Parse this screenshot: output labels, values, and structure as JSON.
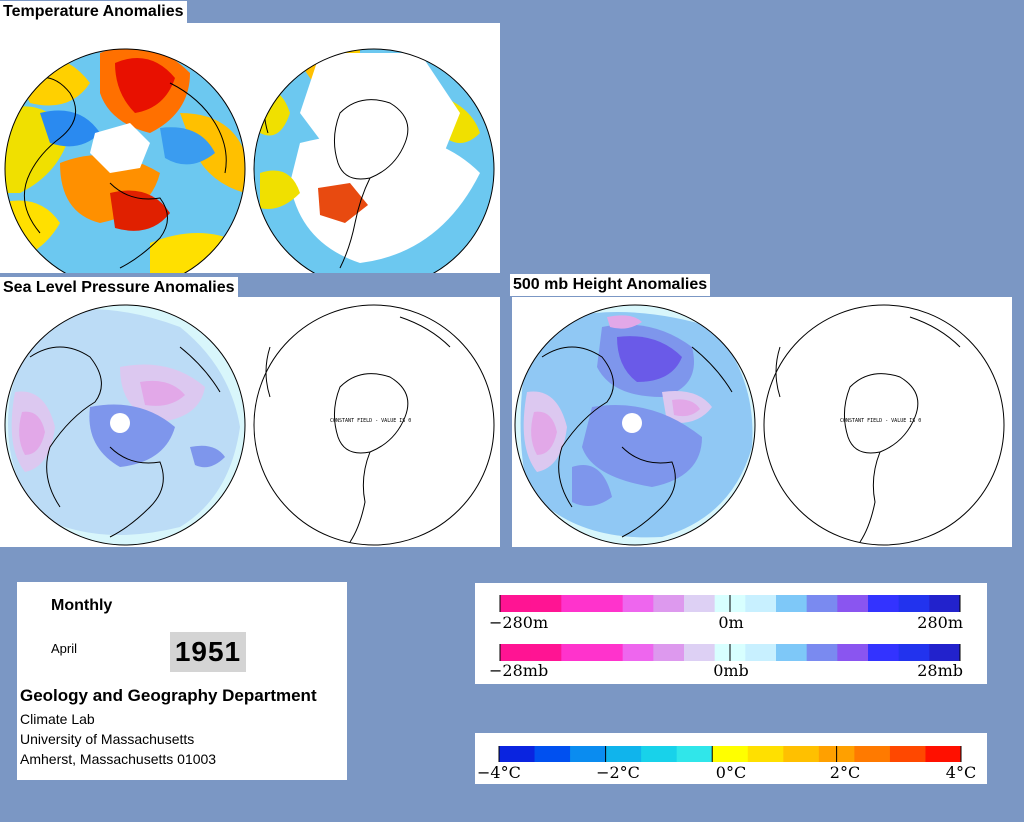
{
  "titles": {
    "temperature": "Temperature Anomalies",
    "slp": "Sea Level Pressure Anomalies",
    "height": "500 mb Height Anomalies"
  },
  "map_labels": {
    "slp_south": "CONSTANT FIELD - VALUE IS 0",
    "height_south": "CONSTANT FIELD - VALUE IS 0"
  },
  "info": {
    "period": "Monthly",
    "month": "April",
    "year": "1951",
    "department": "Geology and Geography Department",
    "lines": [
      "Climate Lab",
      "University of Massachusetts",
      "Amherst, Massachusetts 01003"
    ]
  },
  "legends": {
    "height": {
      "colors": [
        "#ff1493",
        "#ff1493",
        "#ff33cc",
        "#ff33cc",
        "#ee66ee",
        "#dd99ee",
        "#ddd0f4",
        "#d8ffff",
        "#c8f0ff",
        "#7ec8f8",
        "#7a8af0",
        "#8a55f0",
        "#3333ff",
        "#2233ee",
        "#2222cc"
      ],
      "ticks": [
        "−280m",
        "0m",
        "280m"
      ]
    },
    "slp": {
      "colors": [
        "#ff1493",
        "#ff1493",
        "#ff33cc",
        "#ff33cc",
        "#ee66ee",
        "#dd99ee",
        "#ddd0f4",
        "#d8ffff",
        "#c8f0ff",
        "#7ec8f8",
        "#7a8af0",
        "#8a55f0",
        "#3333ff",
        "#2233ee",
        "#2222cc"
      ],
      "ticks": [
        "−28mb",
        "0mb",
        "28mb"
      ]
    },
    "temperature": {
      "colors": [
        "#0a24e0",
        "#0050f0",
        "#0a8cf0",
        "#10b4ec",
        "#18d2ea",
        "#30e6ea",
        "#ffff00",
        "#ffe000",
        "#ffc000",
        "#ffa000",
        "#ff7a00",
        "#ff4800",
        "#ff1000"
      ],
      "ticks": [
        "−4°C",
        "−2°C",
        "0°C",
        "2°C",
        "4°C"
      ]
    }
  }
}
